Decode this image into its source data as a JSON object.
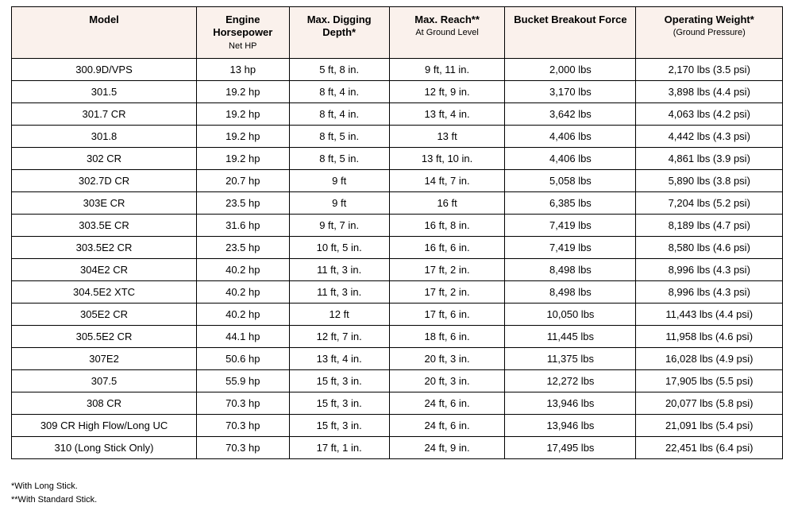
{
  "table": {
    "header_bg": "#faf1ec",
    "border_color": "#000000",
    "columns": [
      {
        "title": "Model",
        "sub": "",
        "width": "24%"
      },
      {
        "title": "Engine Horsepower",
        "sub": "Net HP",
        "width": "12%"
      },
      {
        "title": "Max. Digging Depth*",
        "sub": "",
        "width": "13%"
      },
      {
        "title": "Max. Reach**",
        "sub": "At Ground Level",
        "width": "15%"
      },
      {
        "title": "Bucket Breakout Force",
        "sub": "",
        "width": "17%"
      },
      {
        "title": "Operating Weight*",
        "sub": "(Ground Pressure)",
        "width": "19%"
      }
    ],
    "rows": [
      [
        "300.9D/VPS",
        "13 hp",
        "5 ft, 8 in.",
        "9 ft, 11 in.",
        "2,000 lbs",
        "2,170 lbs (3.5 psi)"
      ],
      [
        "301.5",
        "19.2 hp",
        "8 ft, 4 in.",
        "12 ft, 9 in.",
        "3,170 lbs",
        "3,898 lbs (4.4 psi)"
      ],
      [
        "301.7 CR",
        "19.2 hp",
        "8 ft, 4 in.",
        "13 ft, 4 in.",
        "3,642 lbs",
        "4,063 lbs (4.2 psi)"
      ],
      [
        "301.8",
        "19.2 hp",
        "8 ft, 5 in.",
        "13 ft",
        "4,406 lbs",
        "4,442 lbs (4.3 psi)"
      ],
      [
        "302 CR",
        "19.2 hp",
        "8 ft, 5 in.",
        "13 ft, 10 in.",
        "4,406 lbs",
        "4,861 lbs (3.9 psi)"
      ],
      [
        "302.7D CR",
        "20.7 hp",
        "9 ft",
        "14 ft, 7 in.",
        "5,058 lbs",
        "5,890 lbs (3.8 psi)"
      ],
      [
        "303E CR",
        "23.5 hp",
        "9 ft",
        "16 ft",
        "6,385 lbs",
        "7,204 lbs (5.2 psi)"
      ],
      [
        "303.5E CR",
        "31.6 hp",
        "9 ft, 7 in.",
        "16 ft, 8 in.",
        "7,419 lbs",
        "8,189 lbs (4.7 psi)"
      ],
      [
        "303.5E2 CR",
        "23.5 hp",
        "10 ft, 5 in.",
        "16 ft, 6 in.",
        "7,419 lbs",
        "8,580 lbs (4.6 psi)"
      ],
      [
        "304E2 CR",
        "40.2 hp",
        "11 ft, 3 in.",
        "17 ft, 2 in.",
        "8,498 lbs",
        "8,996 lbs (4.3 psi)"
      ],
      [
        "304.5E2 XTC",
        "40.2 hp",
        "11 ft, 3 in.",
        "17 ft, 2 in.",
        "8,498 lbs",
        "8,996 lbs (4.3 psi)"
      ],
      [
        "305E2 CR",
        "40.2 hp",
        "12 ft",
        "17 ft, 6 in.",
        "10,050 lbs",
        "11,443 lbs (4.4 psi)"
      ],
      [
        "305.5E2 CR",
        "44.1 hp",
        "12 ft, 7 in.",
        "18 ft, 6 in.",
        "11,445 lbs",
        "11,958 lbs (4.6 psi)"
      ],
      [
        "307E2",
        "50.6 hp",
        "13 ft, 4 in.",
        "20 ft, 3 in.",
        "11,375 lbs",
        "16,028 lbs (4.9 psi)"
      ],
      [
        "307.5",
        "55.9 hp",
        "15 ft, 3 in.",
        "20 ft, 3 in.",
        "12,272 lbs",
        "17,905 lbs (5.5 psi)"
      ],
      [
        "308 CR",
        "70.3 hp",
        "15 ft, 3 in.",
        "24 ft, 6 in.",
        "13,946 lbs",
        "20,077 lbs (5.8 psi)"
      ],
      [
        "309 CR High Flow/Long UC",
        "70.3 hp",
        "15 ft, 3 in.",
        "24 ft, 6 in.",
        "13,946 lbs",
        "21,091 lbs (5.4 psi)"
      ],
      [
        "310 (Long Stick Only)",
        "70.3 hp",
        "17 ft, 1 in.",
        "24 ft, 9 in.",
        "17,495 lbs",
        "22,451 lbs (6.4 psi)"
      ]
    ]
  },
  "footnotes": [
    "*With Long Stick.",
    "**With Standard Stick."
  ]
}
